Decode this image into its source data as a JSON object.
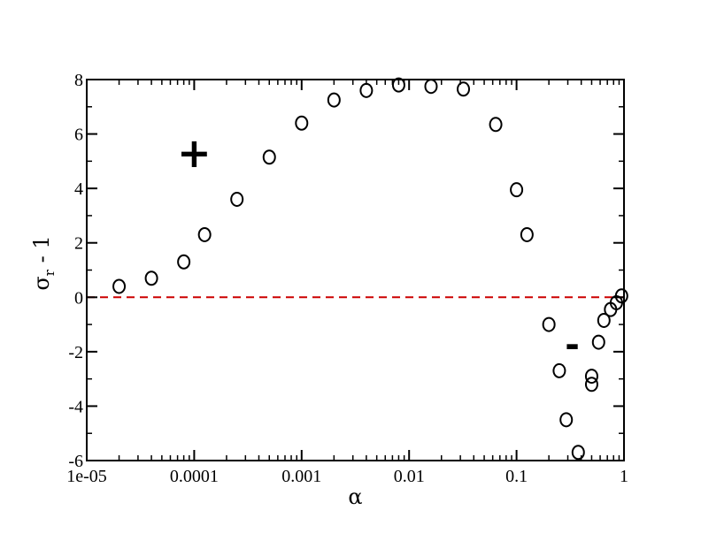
{
  "chart_data": {
    "type": "scatter",
    "xscale": "log",
    "xlim": [
      1e-05,
      1
    ],
    "ylim": [
      -6,
      8
    ],
    "xlabel": "α",
    "ylabel": {
      "main": "σ",
      "sub": "r",
      "rest": " - 1"
    },
    "x_ticks": [
      {
        "value": 1e-05,
        "label": "1e-05"
      },
      {
        "value": 0.0001,
        "label": "0.0001"
      },
      {
        "value": 0.001,
        "label": "0.001"
      },
      {
        "value": 0.01,
        "label": "0.01"
      },
      {
        "value": 0.1,
        "label": "0.1"
      },
      {
        "value": 1,
        "label": "1"
      }
    ],
    "y_ticks": [
      {
        "value": -6,
        "label": "-6"
      },
      {
        "value": -4,
        "label": "-4"
      },
      {
        "value": -2,
        "label": "-2"
      },
      {
        "value": 0,
        "label": "0"
      },
      {
        "value": 2,
        "label": "2"
      },
      {
        "value": 4,
        "label": "4"
      },
      {
        "value": 6,
        "label": "6"
      },
      {
        "value": 8,
        "label": "8"
      }
    ],
    "reference_line": {
      "y": 0,
      "color": "#cc0000",
      "style": "dashed"
    },
    "annotations": [
      {
        "text": "+",
        "x": 0.0001,
        "y": 5.3
      },
      {
        "text": "-",
        "x": 0.33,
        "y": -1.8
      }
    ],
    "series": [
      {
        "marker": "circle",
        "color": "#000000",
        "points": [
          {
            "x": 2e-05,
            "y": 0.4
          },
          {
            "x": 4e-05,
            "y": 0.7
          },
          {
            "x": 8e-05,
            "y": 1.3
          },
          {
            "x": 0.000125,
            "y": 2.3
          },
          {
            "x": 0.00025,
            "y": 3.6
          },
          {
            "x": 0.0005,
            "y": 5.15
          },
          {
            "x": 0.001,
            "y": 6.4
          },
          {
            "x": 0.002,
            "y": 7.25
          },
          {
            "x": 0.004,
            "y": 7.6
          },
          {
            "x": 0.008,
            "y": 7.8
          },
          {
            "x": 0.016,
            "y": 7.75
          },
          {
            "x": 0.032,
            "y": 7.65
          },
          {
            "x": 0.064,
            "y": 6.35
          },
          {
            "x": 0.1,
            "y": 3.95
          },
          {
            "x": 0.125,
            "y": 2.3
          },
          {
            "x": 0.2,
            "y": -1.0
          },
          {
            "x": 0.25,
            "y": -2.7
          },
          {
            "x": 0.29,
            "y": -4.5
          },
          {
            "x": 0.375,
            "y": -5.7
          },
          {
            "x": 0.5,
            "y": -3.2
          },
          {
            "x": 0.5,
            "y": -2.9
          },
          {
            "x": 0.58,
            "y": -1.65
          },
          {
            "x": 0.65,
            "y": -0.85
          },
          {
            "x": 0.75,
            "y": -0.45
          },
          {
            "x": 0.85,
            "y": -0.2
          },
          {
            "x": 0.95,
            "y": 0.05
          }
        ]
      }
    ]
  }
}
